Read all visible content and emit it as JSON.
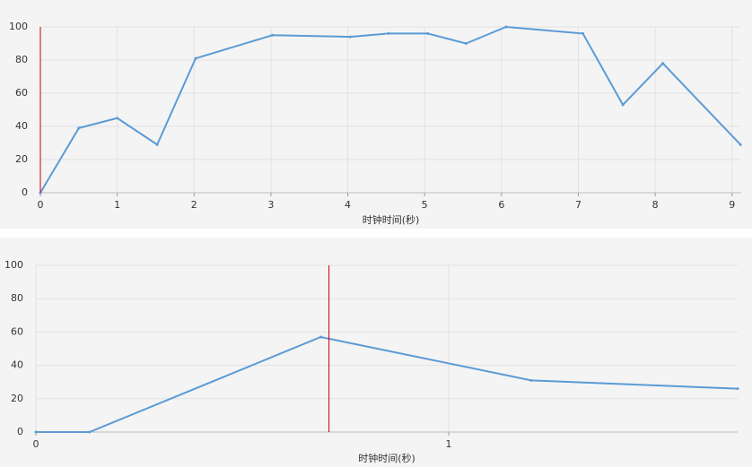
{
  "chart_data": [
    {
      "type": "line",
      "x_label": "时钟时间(秒)",
      "x": [
        0,
        0.5,
        1.0,
        1.52,
        2.02,
        3.02,
        4.03,
        4.53,
        5.04,
        5.54,
        6.06,
        7.06,
        7.58,
        8.1,
        9.11
      ],
      "series": [
        {
          "color": "#5b9bd5",
          "values": [
            0,
            39,
            45,
            29,
            81,
            95,
            94,
            96,
            96,
            90,
            100,
            96,
            53,
            78,
            29
          ]
        }
      ],
      "marker_x": 0,
      "marker_color": "#cc0000",
      "xlim": [
        0,
        9.12
      ],
      "xticks": [
        0,
        1,
        2,
        3,
        4,
        5,
        6,
        7,
        8,
        9
      ],
      "ylim": [
        0,
        100
      ],
      "yticks": [
        0,
        20,
        40,
        60,
        80,
        100
      ],
      "grid": true
    },
    {
      "type": "line",
      "x_label": "时钟时间(秒)",
      "x": [
        0,
        0.13,
        0.69,
        1.2,
        1.7
      ],
      "series": [
        {
          "color": "#5b9bd5",
          "values": [
            0,
            0,
            57,
            31,
            26
          ]
        }
      ],
      "marker_x": 0.71,
      "marker_color": "#cc0000",
      "xlim": [
        0,
        1.7
      ],
      "xticks": [
        0,
        1
      ],
      "ylim": [
        0,
        100
      ],
      "yticks": [
        0,
        20,
        40,
        60,
        80,
        100
      ],
      "grid": true
    }
  ]
}
